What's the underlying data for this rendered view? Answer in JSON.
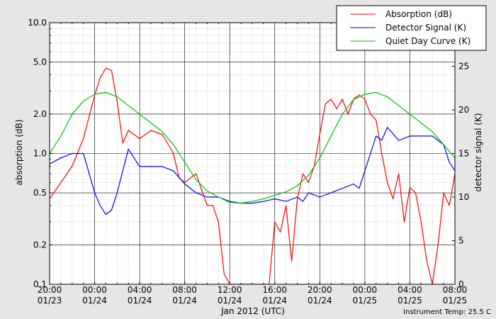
{
  "chart_data": {
    "type": "line",
    "xlabel": "Jan 2012 (UTC)",
    "ylabel_left": "absorption (dB)",
    "ylabel_right": "detector signal (K)",
    "footer_text": "Instrument Temp: 25.5 C",
    "legend_position": "top-right",
    "grid": true,
    "left_axis": {
      "scale": "log",
      "range": [
        0.1,
        10.0
      ],
      "major_ticks": [
        0.1,
        0.2,
        0.5,
        1.0,
        2.0,
        5.0,
        10.0
      ],
      "major_tick_labels": [
        "0.1",
        "0.2",
        "0.5",
        "1.0",
        "2.0",
        "5.0",
        "10.0"
      ]
    },
    "right_axis": {
      "scale": "linear",
      "range": [
        0,
        30
      ],
      "ticks": [
        0,
        5,
        10,
        15,
        20,
        25
      ],
      "tick_labels": [
        "0",
        "5",
        "10",
        "15",
        "20",
        "25"
      ]
    },
    "x_axis": {
      "range": [
        "2012-01-23T20:00",
        "2012-01-25T08:00"
      ],
      "tick_labels": [
        [
          "20:00",
          "01/23"
        ],
        [
          "00:00",
          "01/24"
        ],
        [
          "04:00",
          "01/24"
        ],
        [
          "08:00",
          "01/24"
        ],
        [
          "12:00",
          "01/24"
        ],
        [
          "16:00",
          "01/24"
        ],
        [
          "20:00",
          "01/24"
        ],
        [
          "00:00",
          "01/25"
        ],
        [
          "04:00",
          "01/25"
        ],
        [
          "08:00",
          "01/25"
        ]
      ]
    },
    "series": [
      {
        "name": "Absorption (dB)",
        "color": "#ff0000",
        "axis": "left",
        "x": [
          "2012-01-23T20:00",
          "2012-01-23T21:00",
          "2012-01-23T22:00",
          "2012-01-23T23:00",
          "2012-01-24T00:00",
          "2012-01-24T00:30",
          "2012-01-24T01:00",
          "2012-01-24T01:30",
          "2012-01-24T02:00",
          "2012-01-24T02:30",
          "2012-01-24T03:00",
          "2012-01-24T04:00",
          "2012-01-24T05:00",
          "2012-01-24T06:00",
          "2012-01-24T07:00",
          "2012-01-24T07:30",
          "2012-01-24T08:00",
          "2012-01-24T09:00",
          "2012-01-24T10:00",
          "2012-01-24T10:30",
          "2012-01-24T11:00",
          "2012-01-24T11:30",
          "2012-01-24T12:00",
          "2012-01-24T12:30",
          "2012-01-24T13:00",
          "2012-01-24T14:00",
          "2012-01-24T15:00",
          "2012-01-24T15:30",
          "2012-01-24T16:00",
          "2012-01-24T16:30",
          "2012-01-24T17:00",
          "2012-01-24T17:30",
          "2012-01-24T18:00",
          "2012-01-24T18:30",
          "2012-01-24T19:00",
          "2012-01-24T19:30",
          "2012-01-24T20:00",
          "2012-01-24T20:30",
          "2012-01-24T21:00",
          "2012-01-24T21:30",
          "2012-01-24T22:00",
          "2012-01-24T22:30",
          "2012-01-24T23:00",
          "2012-01-24T23:30",
          "2012-01-25T00:00",
          "2012-01-25T00:30",
          "2012-01-25T01:00",
          "2012-01-25T01:30",
          "2012-01-25T02:00",
          "2012-01-25T02:30",
          "2012-01-25T03:00",
          "2012-01-25T03:30",
          "2012-01-25T04:00",
          "2012-01-25T04:30",
          "2012-01-25T05:00",
          "2012-01-25T05:30",
          "2012-01-25T06:00",
          "2012-01-25T06:30",
          "2012-01-25T07:00",
          "2012-01-25T07:30",
          "2012-01-25T08:00"
        ],
        "y": [
          0.45,
          0.6,
          0.8,
          1.3,
          2.8,
          3.8,
          4.5,
          4.3,
          2.5,
          1.2,
          1.5,
          1.3,
          1.5,
          1.4,
          1.0,
          0.65,
          0.6,
          0.7,
          0.4,
          0.4,
          0.3,
          0.12,
          0.1,
          0.1,
          0.1,
          0.1,
          0.1,
          0.1,
          0.3,
          0.25,
          0.4,
          0.15,
          0.45,
          0.7,
          0.6,
          0.8,
          1.4,
          2.4,
          2.6,
          2.2,
          2.6,
          2.0,
          2.6,
          2.8,
          2.6,
          2.0,
          1.8,
          1.0,
          0.6,
          0.45,
          0.7,
          0.3,
          0.55,
          0.5,
          0.3,
          0.15,
          0.1,
          0.2,
          0.5,
          0.4,
          0.7
        ]
      },
      {
        "name": "Detector Signal (K)",
        "color": "#0000ff",
        "axis": "right",
        "x": [
          "2012-01-23T20:00",
          "2012-01-23T21:00",
          "2012-01-23T22:00",
          "2012-01-23T23:00",
          "2012-01-24T00:00",
          "2012-01-24T00:30",
          "2012-01-24T01:00",
          "2012-01-24T01:30",
          "2012-01-24T02:00",
          "2012-01-24T03:00",
          "2012-01-24T03:30",
          "2012-01-24T04:00",
          "2012-01-24T05:00",
          "2012-01-24T06:00",
          "2012-01-24T07:00",
          "2012-01-24T08:00",
          "2012-01-24T09:00",
          "2012-01-24T10:00",
          "2012-01-24T11:00",
          "2012-01-24T12:00",
          "2012-01-24T13:00",
          "2012-01-24T14:00",
          "2012-01-24T15:00",
          "2012-01-24T16:00",
          "2012-01-24T17:00",
          "2012-01-24T18:00",
          "2012-01-24T18:30",
          "2012-01-24T19:00",
          "2012-01-24T20:00",
          "2012-01-24T21:00",
          "2012-01-24T22:00",
          "2012-01-24T23:00",
          "2012-01-24T23:30",
          "2012-01-25T00:00",
          "2012-01-25T00:30",
          "2012-01-25T01:00",
          "2012-01-25T01:30",
          "2012-01-25T02:00",
          "2012-01-25T03:00",
          "2012-01-25T04:00",
          "2012-01-25T05:00",
          "2012-01-25T06:00",
          "2012-01-25T07:00",
          "2012-01-25T07:30",
          "2012-01-25T08:00"
        ],
        "y": [
          13.8,
          14.5,
          15.0,
          15.0,
          10.5,
          9.0,
          8.0,
          8.5,
          10.5,
          15.5,
          14.5,
          13.5,
          13.5,
          13.5,
          13.0,
          11.5,
          10.5,
          10.0,
          10.0,
          9.5,
          9.3,
          9.3,
          9.5,
          9.8,
          9.5,
          10.0,
          9.5,
          10.5,
          10.0,
          10.5,
          11.0,
          11.5,
          11.0,
          13.0,
          15.0,
          17.0,
          16.5,
          18.0,
          16.5,
          17.0,
          17.0,
          17.0,
          16.0,
          14.0,
          13.0
        ]
      },
      {
        "name": "Quiet Day Curve (K)",
        "color": "#00c000",
        "axis": "right",
        "x": [
          "2012-01-23T20:00",
          "2012-01-23T21:00",
          "2012-01-23T22:00",
          "2012-01-23T23:00",
          "2012-01-24T00:00",
          "2012-01-24T01:00",
          "2012-01-24T02:00",
          "2012-01-24T03:00",
          "2012-01-24T04:00",
          "2012-01-24T05:00",
          "2012-01-24T06:00",
          "2012-01-24T07:00",
          "2012-01-24T08:00",
          "2012-01-24T09:00",
          "2012-01-24T10:00",
          "2012-01-24T11:00",
          "2012-01-24T12:00",
          "2012-01-24T13:00",
          "2012-01-24T14:00",
          "2012-01-24T15:00",
          "2012-01-24T16:00",
          "2012-01-24T17:00",
          "2012-01-24T18:00",
          "2012-01-24T19:00",
          "2012-01-24T20:00",
          "2012-01-24T21:00",
          "2012-01-24T22:00",
          "2012-01-24T23:00",
          "2012-01-25T00:00",
          "2012-01-25T01:00",
          "2012-01-25T02:00",
          "2012-01-25T03:00",
          "2012-01-25T04:00",
          "2012-01-25T05:00",
          "2012-01-25T06:00",
          "2012-01-25T07:00",
          "2012-01-25T08:00"
        ],
        "y": [
          15.0,
          17.0,
          19.5,
          21.0,
          21.8,
          22.0,
          21.5,
          20.5,
          19.5,
          18.5,
          17.5,
          16.0,
          14.0,
          12.0,
          10.7,
          10.0,
          9.4,
          9.3,
          9.5,
          9.8,
          10.2,
          10.6,
          11.3,
          12.5,
          14.5,
          17.0,
          19.5,
          21.2,
          21.8,
          22.0,
          21.5,
          20.5,
          19.5,
          18.5,
          17.5,
          16.0,
          14.5
        ]
      }
    ]
  }
}
